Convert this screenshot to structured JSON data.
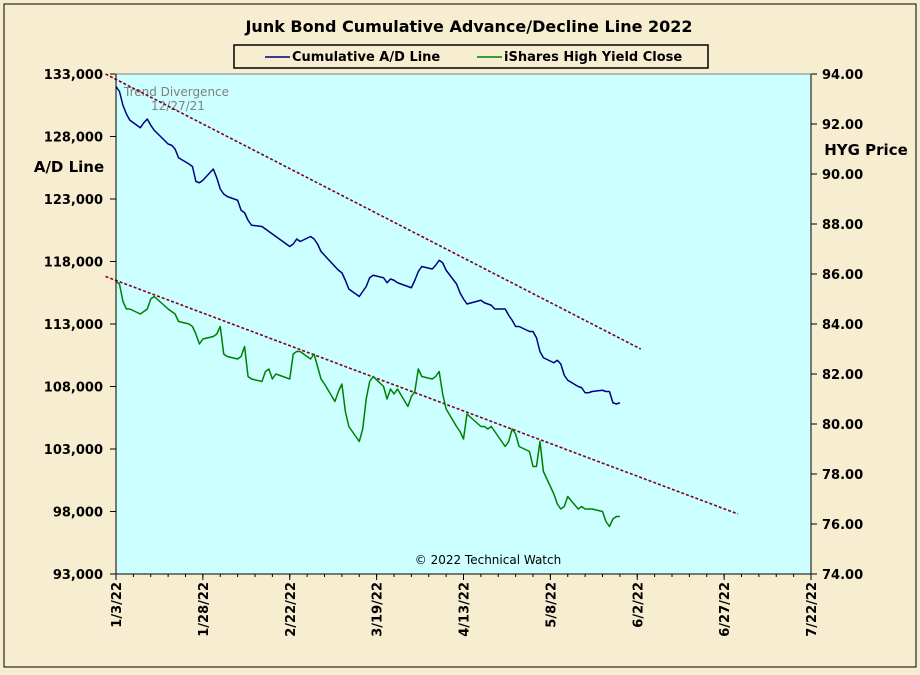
{
  "chart_data": {
    "type": "line",
    "title": "Junk Bond Cumulative  Advance/Decline  Line  2022",
    "y_left_label": "A/D Line",
    "y_right_label": "HYG Price",
    "annotation": "Trend Divergence\n12/27/21",
    "copyright": "© 2022 Technical Watch",
    "x_axis": {
      "type": "date",
      "range": [
        "2022-01-03",
        "2022-07-22"
      ],
      "ticks": [
        "2022-01-03",
        "2022-01-28",
        "2022-02-22",
        "2022-03-19",
        "2022-04-13",
        "2022-05-08",
        "2022-06-02",
        "2022-06-27",
        "2022-07-22"
      ],
      "tick_labels": [
        "1/3/22",
        "1/28/22",
        "2/22/22",
        "3/19/22",
        "4/13/22",
        "5/8/22",
        "6/2/22",
        "6/27/22",
        "7/22/22"
      ]
    },
    "y_left": {
      "range": [
        93000,
        133000
      ],
      "ticks": [
        93000,
        98000,
        103000,
        108000,
        113000,
        118000,
        123000,
        128000,
        133000
      ],
      "tick_labels": [
        "93,000",
        "98,000",
        "103,000",
        "108,000",
        "113,000",
        "118,000",
        "123,000",
        "128,000",
        "133,000"
      ]
    },
    "y_right": {
      "range": [
        74,
        94
      ],
      "ticks": [
        74,
        76,
        78,
        80,
        82,
        84,
        86,
        88,
        90,
        92,
        94
      ],
      "tick_labels": [
        "74.00",
        "76.00",
        "78.00",
        "80.00",
        "82.00",
        "84.00",
        "86.00",
        "88.00",
        "90.00",
        "92.00",
        "94.00"
      ]
    },
    "grid": false,
    "legend": "top-center",
    "colors": {
      "ad_line": "#000080",
      "hyg": "#008000",
      "trend": "#800020",
      "plot_bg": "#ccffff",
      "page_bg": "#f7edd0"
    },
    "series": [
      {
        "name": "Cumulative A/D Line",
        "axis": "left",
        "points": [
          [
            "2022-01-03",
            132000
          ],
          [
            "2022-01-04",
            131600
          ],
          [
            "2022-01-05",
            130500
          ],
          [
            "2022-01-06",
            129800
          ],
          [
            "2022-01-07",
            129300
          ],
          [
            "2022-01-10",
            128700
          ],
          [
            "2022-01-11",
            129100
          ],
          [
            "2022-01-12",
            129400
          ],
          [
            "2022-01-13",
            128900
          ],
          [
            "2022-01-14",
            128500
          ],
          [
            "2022-01-18",
            127400
          ],
          [
            "2022-01-19",
            127300
          ],
          [
            "2022-01-20",
            127000
          ],
          [
            "2022-01-21",
            126300
          ],
          [
            "2022-01-24",
            125800
          ],
          [
            "2022-01-25",
            125600
          ],
          [
            "2022-01-26",
            124400
          ],
          [
            "2022-01-27",
            124300
          ],
          [
            "2022-01-28",
            124500
          ],
          [
            "2022-01-31",
            125400
          ],
          [
            "2022-02-01",
            124700
          ],
          [
            "2022-02-02",
            123800
          ],
          [
            "2022-02-03",
            123400
          ],
          [
            "2022-02-04",
            123200
          ],
          [
            "2022-02-07",
            122900
          ],
          [
            "2022-02-08",
            122100
          ],
          [
            "2022-02-09",
            121900
          ],
          [
            "2022-02-10",
            121300
          ],
          [
            "2022-02-11",
            120900
          ],
          [
            "2022-02-14",
            120800
          ],
          [
            "2022-02-15",
            120600
          ],
          [
            "2022-02-16",
            120400
          ],
          [
            "2022-02-17",
            120200
          ],
          [
            "2022-02-18",
            120000
          ],
          [
            "2022-02-22",
            119200
          ],
          [
            "2022-02-23",
            119400
          ],
          [
            "2022-02-24",
            119800
          ],
          [
            "2022-02-25",
            119600
          ],
          [
            "2022-02-28",
            120000
          ],
          [
            "2022-03-01",
            119800
          ],
          [
            "2022-03-02",
            119400
          ],
          [
            "2022-03-03",
            118800
          ],
          [
            "2022-03-04",
            118500
          ],
          [
            "2022-03-07",
            117600
          ],
          [
            "2022-03-08",
            117300
          ],
          [
            "2022-03-09",
            117100
          ],
          [
            "2022-03-10",
            116500
          ],
          [
            "2022-03-11",
            115800
          ],
          [
            "2022-03-14",
            115200
          ],
          [
            "2022-03-15",
            115600
          ],
          [
            "2022-03-16",
            116000
          ],
          [
            "2022-03-17",
            116700
          ],
          [
            "2022-03-18",
            116900
          ],
          [
            "2022-03-21",
            116700
          ],
          [
            "2022-03-22",
            116300
          ],
          [
            "2022-03-23",
            116600
          ],
          [
            "2022-03-24",
            116500
          ],
          [
            "2022-03-25",
            116300
          ],
          [
            "2022-03-28",
            116000
          ],
          [
            "2022-03-29",
            115900
          ],
          [
            "2022-03-30",
            116500
          ],
          [
            "2022-03-31",
            117200
          ],
          [
            "2022-04-01",
            117600
          ],
          [
            "2022-04-04",
            117400
          ],
          [
            "2022-04-05",
            117700
          ],
          [
            "2022-04-06",
            118100
          ],
          [
            "2022-04-07",
            117900
          ],
          [
            "2022-04-08",
            117300
          ],
          [
            "2022-04-11",
            116200
          ],
          [
            "2022-04-12",
            115500
          ],
          [
            "2022-04-13",
            115000
          ],
          [
            "2022-04-14",
            114600
          ],
          [
            "2022-04-18",
            114900
          ],
          [
            "2022-04-19",
            114700
          ],
          [
            "2022-04-20",
            114600
          ],
          [
            "2022-04-21",
            114500
          ],
          [
            "2022-04-22",
            114200
          ],
          [
            "2022-04-25",
            114200
          ],
          [
            "2022-04-26",
            113700
          ],
          [
            "2022-04-27",
            113300
          ],
          [
            "2022-04-28",
            112800
          ],
          [
            "2022-04-29",
            112800
          ],
          [
            "2022-05-02",
            112400
          ],
          [
            "2022-05-03",
            112400
          ],
          [
            "2022-05-04",
            111900
          ],
          [
            "2022-05-05",
            110800
          ],
          [
            "2022-05-06",
            110300
          ],
          [
            "2022-05-09",
            109900
          ],
          [
            "2022-05-10",
            110100
          ],
          [
            "2022-05-11",
            109800
          ],
          [
            "2022-05-12",
            108900
          ],
          [
            "2022-05-13",
            108500
          ],
          [
            "2022-05-16",
            108000
          ],
          [
            "2022-05-17",
            107900
          ],
          [
            "2022-05-18",
            107500
          ],
          [
            "2022-05-19",
            107500
          ],
          [
            "2022-05-20",
            107600
          ],
          [
            "2022-05-23",
            107700
          ],
          [
            "2022-05-24",
            107600
          ],
          [
            "2022-05-25",
            107600
          ],
          [
            "2022-05-26",
            106700
          ],
          [
            "2022-05-27",
            106600
          ],
          [
            "2022-05-28",
            106700
          ]
        ]
      },
      {
        "name": "iShares High Yield Close",
        "axis": "right",
        "points": [
          [
            "2022-01-03",
            85.7
          ],
          [
            "2022-01-04",
            85.6
          ],
          [
            "2022-01-05",
            84.9
          ],
          [
            "2022-01-06",
            84.6
          ],
          [
            "2022-01-07",
            84.6
          ],
          [
            "2022-01-10",
            84.4
          ],
          [
            "2022-01-11",
            84.5
          ],
          [
            "2022-01-12",
            84.6
          ],
          [
            "2022-01-13",
            85.0
          ],
          [
            "2022-01-14",
            85.1
          ],
          [
            "2022-01-18",
            84.6
          ],
          [
            "2022-01-19",
            84.5
          ],
          [
            "2022-01-20",
            84.4
          ],
          [
            "2022-01-21",
            84.1
          ],
          [
            "2022-01-24",
            84.0
          ],
          [
            "2022-01-25",
            83.9
          ],
          [
            "2022-01-26",
            83.6
          ],
          [
            "2022-01-27",
            83.2
          ],
          [
            "2022-01-28",
            83.4
          ],
          [
            "2022-01-31",
            83.5
          ],
          [
            "2022-02-01",
            83.6
          ],
          [
            "2022-02-02",
            83.9
          ],
          [
            "2022-02-03",
            82.8
          ],
          [
            "2022-02-04",
            82.7
          ],
          [
            "2022-02-07",
            82.6
          ],
          [
            "2022-02-08",
            82.7
          ],
          [
            "2022-02-09",
            83.1
          ],
          [
            "2022-02-10",
            81.9
          ],
          [
            "2022-02-11",
            81.8
          ],
          [
            "2022-02-14",
            81.7
          ],
          [
            "2022-02-15",
            82.1
          ],
          [
            "2022-02-16",
            82.2
          ],
          [
            "2022-02-17",
            81.8
          ],
          [
            "2022-02-18",
            82.0
          ],
          [
            "2022-02-22",
            81.8
          ],
          [
            "2022-02-23",
            82.8
          ],
          [
            "2022-02-24",
            82.9
          ],
          [
            "2022-02-25",
            82.9
          ],
          [
            "2022-02-28",
            82.6
          ],
          [
            "2022-03-01",
            82.8
          ],
          [
            "2022-03-02",
            82.3
          ],
          [
            "2022-03-03",
            81.8
          ],
          [
            "2022-03-04",
            81.6
          ],
          [
            "2022-03-07",
            80.9
          ],
          [
            "2022-03-08",
            81.3
          ],
          [
            "2022-03-09",
            81.6
          ],
          [
            "2022-03-10",
            80.5
          ],
          [
            "2022-03-11",
            79.9
          ],
          [
            "2022-03-14",
            79.3
          ],
          [
            "2022-03-15",
            79.8
          ],
          [
            "2022-03-16",
            81.0
          ],
          [
            "2022-03-17",
            81.7
          ],
          [
            "2022-03-18",
            81.9
          ],
          [
            "2022-03-21",
            81.5
          ],
          [
            "2022-03-22",
            81.0
          ],
          [
            "2022-03-23",
            81.4
          ],
          [
            "2022-03-24",
            81.2
          ],
          [
            "2022-03-25",
            81.4
          ],
          [
            "2022-03-28",
            80.7
          ],
          [
            "2022-03-29",
            81.1
          ],
          [
            "2022-03-30",
            81.3
          ],
          [
            "2022-03-31",
            82.2
          ],
          [
            "2022-04-01",
            81.9
          ],
          [
            "2022-04-04",
            81.8
          ],
          [
            "2022-04-05",
            81.9
          ],
          [
            "2022-04-06",
            82.1
          ],
          [
            "2022-04-07",
            81.2
          ],
          [
            "2022-04-08",
            80.6
          ],
          [
            "2022-04-11",
            79.9
          ],
          [
            "2022-04-12",
            79.7
          ],
          [
            "2022-04-13",
            79.4
          ],
          [
            "2022-04-14",
            80.4
          ],
          [
            "2022-04-18",
            79.9
          ],
          [
            "2022-04-19",
            79.9
          ],
          [
            "2022-04-20",
            79.8
          ],
          [
            "2022-04-21",
            79.9
          ],
          [
            "2022-04-22",
            79.7
          ],
          [
            "2022-04-25",
            79.1
          ],
          [
            "2022-04-26",
            79.3
          ],
          [
            "2022-04-27",
            79.8
          ],
          [
            "2022-04-28",
            79.6
          ],
          [
            "2022-04-29",
            79.1
          ],
          [
            "2022-05-02",
            78.9
          ],
          [
            "2022-05-03",
            78.3
          ],
          [
            "2022-05-04",
            78.3
          ],
          [
            "2022-05-05",
            79.3
          ],
          [
            "2022-05-06",
            78.1
          ],
          [
            "2022-05-09",
            77.2
          ],
          [
            "2022-05-10",
            76.8
          ],
          [
            "2022-05-11",
            76.6
          ],
          [
            "2022-05-12",
            76.7
          ],
          [
            "2022-05-13",
            77.1
          ],
          [
            "2022-05-16",
            76.6
          ],
          [
            "2022-05-17",
            76.7
          ],
          [
            "2022-05-18",
            76.6
          ],
          [
            "2022-05-19",
            76.6
          ],
          [
            "2022-05-20",
            76.6
          ],
          [
            "2022-05-23",
            76.5
          ],
          [
            "2022-05-24",
            76.1
          ],
          [
            "2022-05-25",
            75.9
          ],
          [
            "2022-05-26",
            76.2
          ],
          [
            "2022-05-27",
            76.3
          ],
          [
            "2022-05-28",
            76.3
          ]
        ]
      }
    ],
    "trend_lines": [
      {
        "axis": "left",
        "from": [
          "2021-12-31",
          133000
        ],
        "to": [
          "2022-06-03",
          111000
        ]
      },
      {
        "axis": "right",
        "from": [
          "2021-12-31",
          85.9
        ],
        "to": [
          "2022-07-01",
          76.4
        ]
      }
    ]
  }
}
